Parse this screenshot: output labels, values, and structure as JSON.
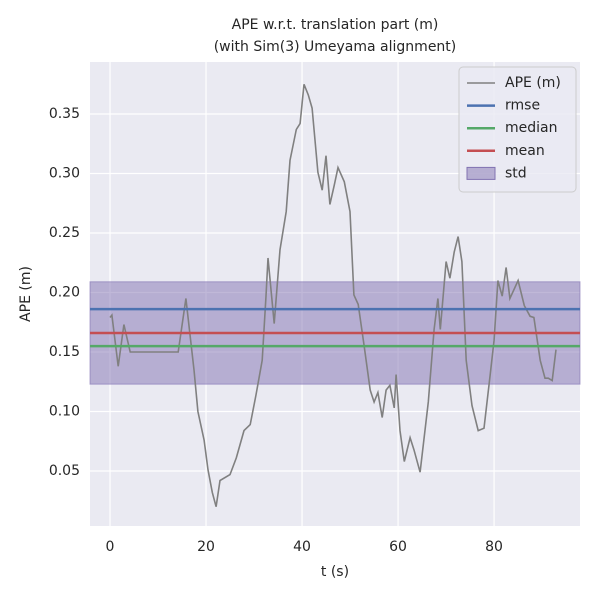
{
  "chart_data": {
    "type": "line",
    "title": "APE w.r.t. translation part (m)",
    "subtitle": "(with Sim(3) Umeyama alignment)",
    "x_label": "t (s)",
    "y_label": "APE (m)",
    "xlim": [
      -4.17,
      97.9
    ],
    "ylim": [
      0.0038,
      0.3937
    ],
    "xticks": [
      0,
      20,
      40,
      60,
      80
    ],
    "yticks": [
      0.05,
      {
        "value": 0.1,
        "label": "0.10"
      },
      0.15,
      {
        "value": 0.2,
        "label": "0.20"
      },
      0.25,
      {
        "value": 0.3,
        "label": "0.30"
      },
      0.35
    ],
    "grid": true,
    "legend": "upper right",
    "x": [
      0,
      0.4,
      1.7,
      2.9,
      4.2,
      14.2,
      15.8,
      17.5,
      18.3,
      19.6,
      20.4,
      21.3,
      22.1,
      22.9,
      25,
      26.3,
      27.9,
      29.2,
      30.4,
      31.7,
      32.5,
      32.9,
      34.2,
      35.4,
      36.7,
      37.5,
      38.8,
      39.6,
      40.4,
      41.3,
      42.1,
      43.3,
      44.2,
      45,
      45.8,
      46.7,
      47.5,
      48.8,
      50,
      50.8,
      51.7,
      52.9,
      54.2,
      55,
      55.8,
      56.7,
      57.5,
      58.3,
      59.2,
      59.6,
      60.4,
      61.3,
      62.5,
      63.3,
      64.6,
      66.3,
      67.5,
      68.3,
      68.8,
      70,
      70.8,
      71.7,
      72.5,
      73.3,
      74.2,
      75.4,
      76.7,
      77.9,
      79.2,
      80,
      80.8,
      81.7,
      82.5,
      83.3,
      85,
      86.3,
      87.5,
      88.3,
      89.6,
      90.6,
      91.3,
      92.1,
      92.9
    ],
    "series": [
      {
        "name": "APE (m)",
        "color": "#808080",
        "values": [
          0.179,
          0.181,
          0.138,
          0.173,
          0.15,
          0.15,
          0.195,
          0.135,
          0.1,
          0.076,
          0.051,
          0.032,
          0.02,
          0.042,
          0.047,
          0.061,
          0.084,
          0.089,
          0.114,
          0.143,
          0.197,
          0.229,
          0.174,
          0.236,
          0.268,
          0.311,
          0.337,
          0.342,
          0.375,
          0.366,
          0.355,
          0.301,
          0.286,
          0.315,
          0.274,
          0.29,
          0.305,
          0.293,
          0.268,
          0.198,
          0.19,
          0.156,
          0.118,
          0.108,
          0.116,
          0.095,
          0.118,
          0.122,
          0.103,
          0.131,
          0.084,
          0.058,
          0.078,
          0.068,
          0.049,
          0.108,
          0.169,
          0.195,
          0.169,
          0.226,
          0.212,
          0.234,
          0.247,
          0.226,
          0.143,
          0.105,
          0.084,
          0.086,
          0.131,
          0.16,
          0.21,
          0.197,
          0.221,
          0.195,
          0.21,
          0.189,
          0.18,
          0.179,
          0.143,
          0.128,
          0.128,
          0.126,
          0.152
        ]
      }
    ],
    "hlines": [
      {
        "name": "rmse",
        "color": "#4c72b0",
        "value": 0.186
      },
      {
        "name": "median",
        "color": "#55a868",
        "value": 0.155
      },
      {
        "name": "mean",
        "color": "#c44e52",
        "value": 0.166
      }
    ],
    "band": {
      "name": "std",
      "color": "#8172b2",
      "value": 0.043
    }
  }
}
